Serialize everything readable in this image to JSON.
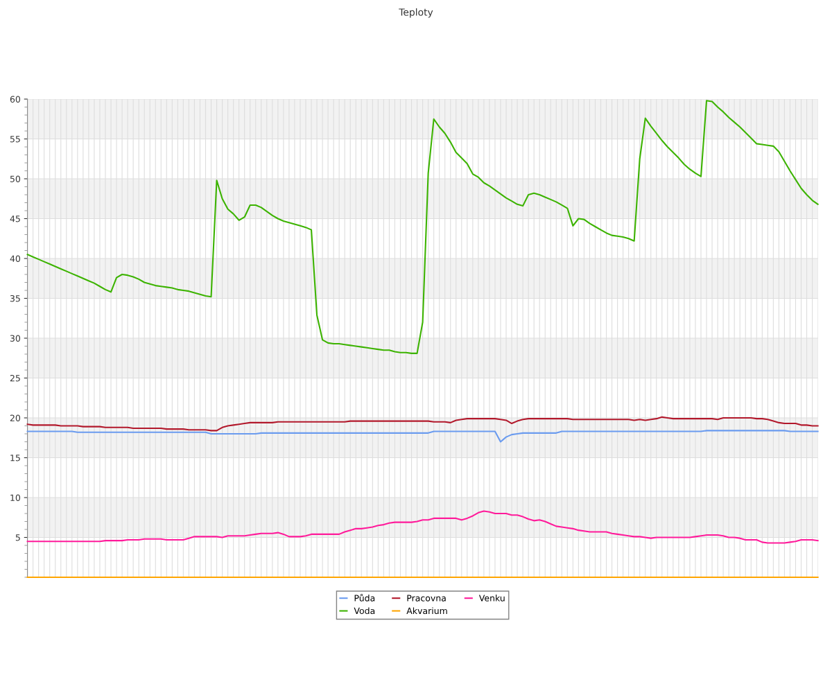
{
  "chart_data": {
    "type": "line",
    "title": "Teploty",
    "categories": [
      null,
      null,
      null,
      null,
      null,
      null,
      null,
      null,
      null,
      null,
      null,
      null,
      null,
      null,
      null,
      null,
      null,
      null,
      null,
      null,
      null,
      null,
      null,
      null,
      null,
      null,
      null,
      null,
      null,
      null,
      null,
      null,
      null,
      null,
      null,
      null,
      null,
      null,
      null,
      null,
      null,
      null,
      null,
      null,
      null,
      null,
      null,
      null,
      null,
      null,
      null,
      null,
      null,
      null,
      null,
      null,
      null,
      null,
      null,
      null,
      null,
      null,
      null,
      null,
      null,
      null,
      null,
      null,
      null,
      null,
      null,
      null,
      null,
      null,
      null,
      null,
      null,
      null,
      null,
      null,
      null,
      null,
      null,
      null,
      null,
      null,
      null,
      null,
      null,
      null,
      null,
      null,
      null,
      null,
      null,
      null,
      null,
      null,
      null,
      null,
      null,
      null,
      null,
      null,
      null,
      null,
      null,
      null,
      null,
      null,
      null,
      null,
      null,
      null,
      null,
      null,
      null,
      null,
      null,
      null,
      null,
      null,
      null,
      null,
      null,
      null,
      null,
      null,
      null,
      null,
      null,
      null,
      null,
      null,
      null,
      null,
      null,
      null,
      null,
      null,
      null,
      null,
      null
    ],
    "series": [
      {
        "name": "Půda",
        "color": "#6a9bef",
        "values": [
          18.3,
          18.3,
          18.3,
          18.3,
          18.3,
          18.3,
          18.3,
          18.3,
          18.3,
          18.2,
          18.2,
          18.2,
          18.2,
          18.2,
          18.2,
          18.2,
          18.2,
          18.2,
          18.2,
          18.2,
          18.2,
          18.2,
          18.2,
          18.2,
          18.2,
          18.2,
          18.2,
          18.2,
          18.2,
          18.2,
          18.2,
          18.2,
          18.2,
          18.0,
          18.0,
          18.0,
          18.0,
          18.0,
          18.0,
          18.0,
          18.0,
          18.0,
          18.1,
          18.1,
          18.1,
          18.1,
          18.1,
          18.1,
          18.1,
          18.1,
          18.1,
          18.1,
          18.1,
          18.1,
          18.1,
          18.1,
          18.1,
          18.1,
          18.1,
          18.1,
          18.1,
          18.1,
          18.1,
          18.1,
          18.1,
          18.1,
          18.1,
          18.1,
          18.1,
          18.1,
          18.1,
          18.1,
          18.1,
          18.3,
          18.3,
          18.3,
          18.3,
          18.3,
          18.3,
          18.3,
          18.3,
          18.3,
          18.3,
          18.3,
          18.3,
          17.0,
          17.6,
          17.9,
          18.0,
          18.1,
          18.1,
          18.1,
          18.1,
          18.1,
          18.1,
          18.1,
          18.3,
          18.3,
          18.3,
          18.3,
          18.3,
          18.3,
          18.3,
          18.3,
          18.3,
          18.3,
          18.3,
          18.3,
          18.3,
          18.3,
          18.3,
          18.3,
          18.3,
          18.3,
          18.3,
          18.3,
          18.3,
          18.3,
          18.3,
          18.3,
          18.3,
          18.3,
          18.4,
          18.4,
          18.4,
          18.4,
          18.4,
          18.4,
          18.4,
          18.4,
          18.4,
          18.4,
          18.4,
          18.4,
          18.4,
          18.4,
          18.4,
          18.3,
          18.3,
          18.3,
          18.3,
          18.3,
          18.3
        ]
      },
      {
        "name": "Voda",
        "color": "#3cb300",
        "values": [
          40.5,
          40.2,
          39.9,
          39.6,
          39.3,
          39.0,
          38.7,
          38.4,
          38.1,
          37.8,
          37.5,
          37.2,
          36.9,
          36.5,
          36.1,
          35.8,
          37.6,
          38.0,
          37.9,
          37.7,
          37.4,
          37.0,
          36.8,
          36.6,
          36.5,
          36.4,
          36.3,
          36.1,
          36.0,
          35.9,
          35.7,
          35.5,
          35.3,
          35.2,
          49.8,
          47.5,
          46.2,
          45.6,
          44.8,
          45.2,
          46.7,
          46.7,
          46.4,
          45.9,
          45.4,
          45.0,
          44.7,
          44.5,
          44.3,
          44.1,
          43.9,
          43.6,
          32.9,
          29.8,
          29.4,
          29.3,
          29.3,
          29.2,
          29.1,
          29.0,
          28.9,
          28.8,
          28.7,
          28.6,
          28.5,
          28.5,
          28.3,
          28.2,
          28.2,
          28.1,
          28.1,
          32.0,
          50.7,
          57.5,
          56.5,
          55.7,
          54.6,
          53.3,
          52.6,
          51.9,
          50.6,
          50.2,
          49.5,
          49.1,
          48.6,
          48.1,
          47.6,
          47.2,
          46.8,
          46.6,
          48.0,
          48.2,
          48.0,
          47.7,
          47.4,
          47.1,
          46.7,
          46.3,
          44.1,
          45.0,
          44.9,
          44.4,
          44.0,
          43.6,
          43.2,
          42.9,
          42.8,
          42.7,
          42.5,
          42.2,
          52.5,
          57.6,
          56.6,
          55.7,
          54.8,
          54.0,
          53.3,
          52.6,
          51.8,
          51.2,
          50.7,
          50.3,
          59.8,
          59.7,
          59.0,
          58.4,
          57.7,
          57.1,
          56.5,
          55.8,
          55.1,
          54.4,
          54.3,
          54.2,
          54.1,
          53.4,
          52.2,
          51.0,
          49.9,
          48.8,
          48.0,
          47.3,
          46.8
        ]
      },
      {
        "name": "Pracovna",
        "color": "#b2182b",
        "values": [
          19.2,
          19.1,
          19.1,
          19.1,
          19.1,
          19.1,
          19.0,
          19.0,
          19.0,
          19.0,
          18.9,
          18.9,
          18.9,
          18.9,
          18.8,
          18.8,
          18.8,
          18.8,
          18.8,
          18.7,
          18.7,
          18.7,
          18.7,
          18.7,
          18.7,
          18.6,
          18.6,
          18.6,
          18.6,
          18.5,
          18.5,
          18.5,
          18.5,
          18.4,
          18.4,
          18.8,
          19.0,
          19.1,
          19.2,
          19.3,
          19.4,
          19.4,
          19.4,
          19.4,
          19.4,
          19.5,
          19.5,
          19.5,
          19.5,
          19.5,
          19.5,
          19.5,
          19.5,
          19.5,
          19.5,
          19.5,
          19.5,
          19.5,
          19.6,
          19.6,
          19.6,
          19.6,
          19.6,
          19.6,
          19.6,
          19.6,
          19.6,
          19.6,
          19.6,
          19.6,
          19.6,
          19.6,
          19.6,
          19.5,
          19.5,
          19.5,
          19.4,
          19.7,
          19.8,
          19.9,
          19.9,
          19.9,
          19.9,
          19.9,
          19.9,
          19.8,
          19.7,
          19.3,
          19.6,
          19.8,
          19.9,
          19.9,
          19.9,
          19.9,
          19.9,
          19.9,
          19.9,
          19.9,
          19.8,
          19.8,
          19.8,
          19.8,
          19.8,
          19.8,
          19.8,
          19.8,
          19.8,
          19.8,
          19.8,
          19.7,
          19.8,
          19.7,
          19.8,
          19.9,
          20.1,
          20.0,
          19.9,
          19.9,
          19.9,
          19.9,
          19.9,
          19.9,
          19.9,
          19.9,
          19.8,
          20.0,
          20.0,
          20.0,
          20.0,
          20.0,
          20.0,
          19.9,
          19.9,
          19.8,
          19.6,
          19.4,
          19.3,
          19.3,
          19.3,
          19.1,
          19.1,
          19.0,
          19.0
        ]
      },
      {
        "name": "Akvarium",
        "color": "#ffa500",
        "values": [
          0,
          0,
          0,
          0,
          0,
          0,
          0,
          0,
          0,
          0,
          0,
          0,
          0,
          0,
          0,
          0,
          0,
          0,
          0,
          0,
          0,
          0,
          0,
          0,
          0,
          0,
          0,
          0,
          0,
          0,
          0,
          0,
          0,
          0,
          0,
          0,
          0,
          0,
          0,
          0,
          0,
          0,
          0,
          0,
          0,
          0,
          0,
          0,
          0,
          0,
          0,
          0,
          0,
          0,
          0,
          0,
          0,
          0,
          0,
          0,
          0,
          0,
          0,
          0,
          0,
          0,
          0,
          0,
          0,
          0,
          0,
          0,
          0,
          0,
          0,
          0,
          0,
          0,
          0,
          0,
          0,
          0,
          0,
          0,
          0,
          0,
          0,
          0,
          0,
          0,
          0,
          0,
          0,
          0,
          0,
          0,
          0,
          0,
          0,
          0,
          0,
          0,
          0,
          0,
          0,
          0,
          0,
          0,
          0,
          0,
          0,
          0,
          0,
          0,
          0,
          0,
          0,
          0,
          0,
          0,
          0,
          0,
          0,
          0,
          0,
          0,
          0,
          0,
          0,
          0,
          0,
          0,
          0,
          0,
          0,
          0,
          0,
          0,
          0,
          0,
          0,
          0,
          0
        ]
      },
      {
        "name": "Venku",
        "color": "#ff1a9a",
        "values": [
          4.5,
          4.5,
          4.5,
          4.5,
          4.5,
          4.5,
          4.5,
          4.5,
          4.5,
          4.5,
          4.5,
          4.5,
          4.5,
          4.5,
          4.6,
          4.6,
          4.6,
          4.6,
          4.7,
          4.7,
          4.7,
          4.8,
          4.8,
          4.8,
          4.8,
          4.7,
          4.7,
          4.7,
          4.7,
          4.9,
          5.1,
          5.1,
          5.1,
          5.1,
          5.1,
          5.0,
          5.2,
          5.2,
          5.2,
          5.2,
          5.3,
          5.4,
          5.5,
          5.5,
          5.5,
          5.6,
          5.4,
          5.1,
          5.1,
          5.1,
          5.2,
          5.4,
          5.4,
          5.4,
          5.4,
          5.4,
          5.4,
          5.7,
          5.9,
          6.1,
          6.1,
          6.2,
          6.3,
          6.5,
          6.6,
          6.8,
          6.9,
          6.9,
          6.9,
          6.9,
          7.0,
          7.2,
          7.2,
          7.4,
          7.4,
          7.4,
          7.4,
          7.4,
          7.2,
          7.4,
          7.7,
          8.1,
          8.3,
          8.2,
          8.0,
          8.0,
          8.0,
          7.8,
          7.8,
          7.6,
          7.3,
          7.1,
          7.2,
          7.0,
          6.7,
          6.4,
          6.3,
          6.2,
          6.1,
          5.9,
          5.8,
          5.7,
          5.7,
          5.7,
          5.7,
          5.5,
          5.4,
          5.3,
          5.2,
          5.1,
          5.1,
          5.0,
          4.9,
          5.0,
          5.0,
          5.0,
          5.0,
          5.0,
          5.0,
          5.0,
          5.1,
          5.2,
          5.3,
          5.3,
          5.3,
          5.2,
          5.0,
          5.0,
          4.9,
          4.7,
          4.7,
          4.7,
          4.4,
          4.3,
          4.3,
          4.3,
          4.3,
          4.4,
          4.5,
          4.7,
          4.7,
          4.7,
          4.6
        ]
      }
    ],
    "ylim": [
      0,
      60
    ],
    "yticks": [
      5,
      10,
      15,
      20,
      25,
      30,
      35,
      40,
      45,
      50,
      55,
      60
    ],
    "bands": [
      {
        "axis": "y",
        "from": 5,
        "to": 10,
        "color": "#f2f2f2"
      },
      {
        "axis": "y",
        "from": 15,
        "to": 20,
        "color": "#f2f2f2"
      },
      {
        "axis": "y",
        "from": 25,
        "to": 30,
        "color": "#f2f2f2"
      },
      {
        "axis": "y",
        "from": 35,
        "to": 40,
        "color": "#f2f2f2"
      },
      {
        "axis": "y",
        "from": 45,
        "to": 50,
        "color": "#f2f2f2"
      },
      {
        "axis": "y",
        "from": 55,
        "to": 60,
        "color": "#f2f2f2"
      }
    ],
    "grid": true,
    "legend": "bottom",
    "marker": "none",
    "line_style": "solid"
  }
}
